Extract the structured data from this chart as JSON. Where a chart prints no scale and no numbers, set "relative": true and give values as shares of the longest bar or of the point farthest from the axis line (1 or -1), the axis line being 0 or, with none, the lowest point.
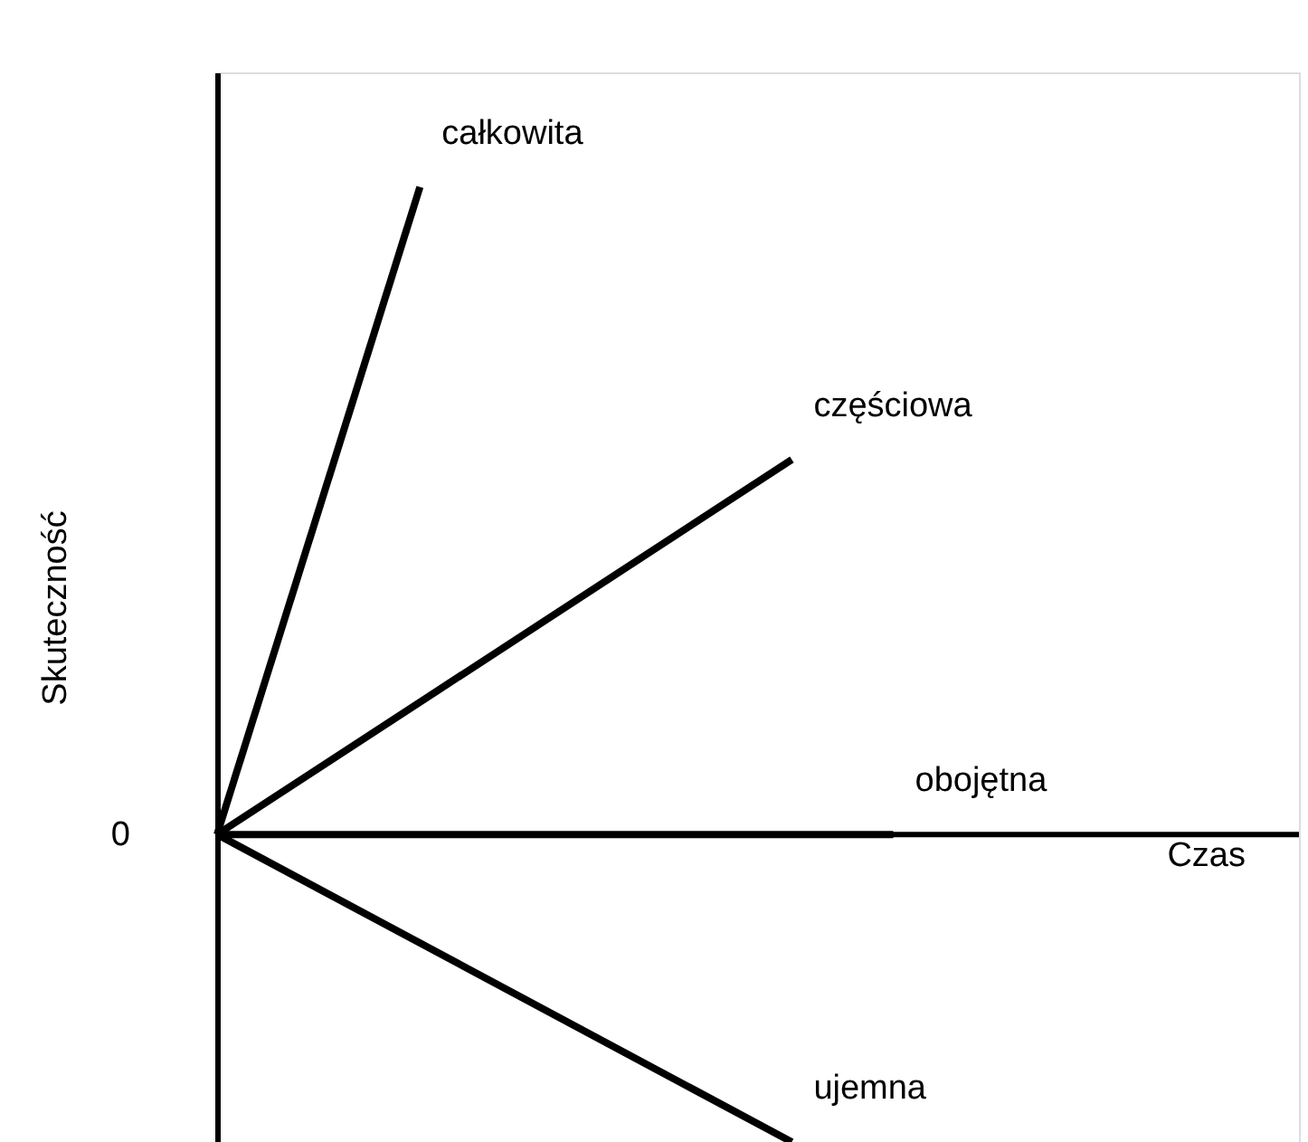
{
  "chart_data": {
    "type": "line",
    "relative": true,
    "xlabel": "Czas",
    "ylabel": "Skuteczność",
    "categories": [
      null,
      null,
      null,
      null,
      null,
      null,
      null,
      null,
      null,
      null,
      null,
      null,
      null,
      null,
      null,
      null,
      null,
      null,
      null,
      null,
      null,
      null,
      null,
      null,
      null,
      null,
      null,
      null,
      null,
      null,
      null,
      null,
      null
    ],
    "series": [
      {
        "name": "całkowita",
        "color": "#000000",
        "values": [
          0,
          null,
          null,
          null,
          null,
          null,
          1,
          null,
          null,
          null,
          null,
          null,
          null,
          null,
          null,
          null,
          null,
          null,
          null,
          null,
          null,
          null,
          null,
          null,
          null,
          null,
          null,
          null,
          null,
          null,
          null,
          null,
          null
        ]
      },
      {
        "name": "częściowa",
        "color": "#000000",
        "values": [
          0,
          null,
          null,
          null,
          null,
          null,
          null,
          null,
          null,
          null,
          null,
          null,
          null,
          null,
          null,
          null,
          null,
          0.579,
          null,
          null,
          null,
          null,
          null,
          null,
          null,
          null,
          null,
          null,
          null,
          null,
          null,
          null,
          null
        ]
      },
      {
        "name": "obojętna",
        "color": "#000000",
        "values": [
          0,
          null,
          null,
          null,
          null,
          null,
          null,
          null,
          null,
          null,
          null,
          null,
          null,
          null,
          null,
          null,
          null,
          null,
          null,
          null,
          0,
          null,
          null,
          null,
          null,
          null,
          null,
          null,
          null,
          null,
          null,
          null,
          null
        ]
      },
      {
        "name": "ujemna",
        "color": "#000000",
        "values": [
          0,
          null,
          null,
          null,
          null,
          null,
          null,
          null,
          null,
          null,
          null,
          null,
          null,
          null,
          null,
          null,
          null,
          -0.475,
          null,
          null,
          null,
          null,
          null,
          null,
          null,
          null,
          null,
          null,
          null,
          null,
          null,
          null,
          null
        ]
      }
    ],
    "annotations": [
      "0"
    ],
    "legend": false,
    "grid": false,
    "marker": "none",
    "line_style": "solid"
  }
}
